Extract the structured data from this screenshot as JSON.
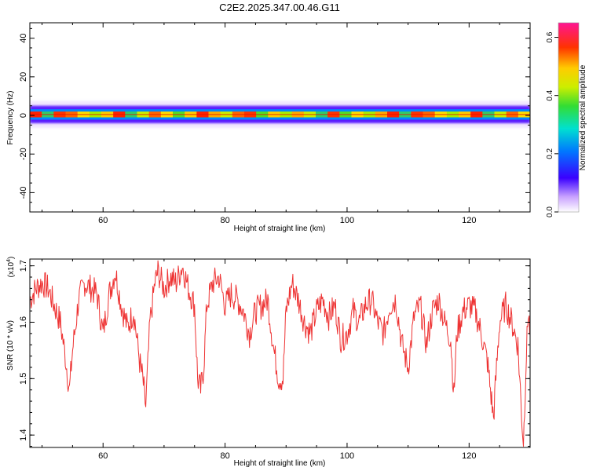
{
  "title": "C2E2.2025.347.00.46.G11",
  "chart_data": [
    {
      "type": "heatmap",
      "xlabel": "Height of straight line (km)",
      "ylabel": "Frequency (Hz)",
      "xlim": [
        48,
        130
      ],
      "ylim": [
        -50,
        48
      ],
      "xticks": [
        60,
        80,
        100,
        120
      ],
      "yticks": [
        -40,
        -20,
        0,
        20,
        40
      ],
      "band": {
        "center_hz": 0.5,
        "core_halfwidth_hz": 1.5,
        "outer_halfwidth_hz": 4.5,
        "fringe_halfwidth_hz": 7
      },
      "colorbar": {
        "label": "Normalized spectral amplitude",
        "range": [
          0,
          0.65
        ],
        "ticks": [
          0.0,
          0.2,
          0.4,
          0.6
        ],
        "tick_labels": [
          "0.0",
          "0.2",
          "0.4",
          "0.6"
        ]
      }
    },
    {
      "type": "line",
      "xlabel": "Height of straight line (km)",
      "ylabel": "SNR (10 * v/v)",
      "scale_label": "(x10",
      "scale_exp": "4",
      "xlim": [
        48,
        130
      ],
      "ylim": [
        1.378,
        1.712
      ],
      "xticks": [
        60,
        80,
        100,
        120
      ],
      "yticks": [
        1.4,
        1.5,
        1.6,
        1.7
      ],
      "color": "#ee3333",
      "x": [
        48,
        49,
        50,
        51,
        52,
        53,
        53.8,
        54.5,
        55,
        56,
        57,
        58,
        59,
        60,
        61,
        62,
        63,
        64,
        65,
        66,
        66.5,
        67,
        67.7,
        68.5,
        69,
        70,
        71,
        72,
        73,
        74,
        75,
        75.5,
        76,
        76.5,
        77,
        78,
        79,
        80,
        81,
        82,
        83,
        84,
        85,
        86,
        87,
        88,
        88.8,
        89.5,
        90,
        91,
        92,
        93,
        94,
        95,
        96,
        97,
        98,
        99,
        100,
        101,
        102,
        103,
        104,
        105,
        106,
        107,
        108,
        109,
        110,
        111,
        112,
        113,
        114,
        115,
        116,
        117,
        117.5,
        118,
        119,
        120,
        121,
        122,
        123,
        123.5,
        124,
        124.5,
        125,
        126,
        127,
        128,
        128.5,
        128.9,
        129.3,
        129.7,
        130
      ],
      "y": [
        1.64,
        1.66,
        1.67,
        1.66,
        1.63,
        1.6,
        1.54,
        1.48,
        1.55,
        1.64,
        1.67,
        1.66,
        1.65,
        1.58,
        1.65,
        1.69,
        1.63,
        1.59,
        1.62,
        1.53,
        1.5,
        1.45,
        1.6,
        1.67,
        1.69,
        1.66,
        1.68,
        1.67,
        1.7,
        1.66,
        1.63,
        1.5,
        1.48,
        1.52,
        1.63,
        1.67,
        1.68,
        1.63,
        1.65,
        1.64,
        1.62,
        1.58,
        1.62,
        1.63,
        1.64,
        1.55,
        1.5,
        1.5,
        1.62,
        1.67,
        1.64,
        1.6,
        1.58,
        1.62,
        1.64,
        1.61,
        1.63,
        1.57,
        1.58,
        1.62,
        1.6,
        1.63,
        1.64,
        1.6,
        1.58,
        1.63,
        1.64,
        1.56,
        1.52,
        1.61,
        1.63,
        1.56,
        1.62,
        1.64,
        1.6,
        1.57,
        1.47,
        1.58,
        1.62,
        1.63,
        1.62,
        1.58,
        1.53,
        1.48,
        1.43,
        1.52,
        1.6,
        1.63,
        1.6,
        1.56,
        1.46,
        1.38,
        1.52,
        1.62,
        1.58
      ]
    }
  ]
}
